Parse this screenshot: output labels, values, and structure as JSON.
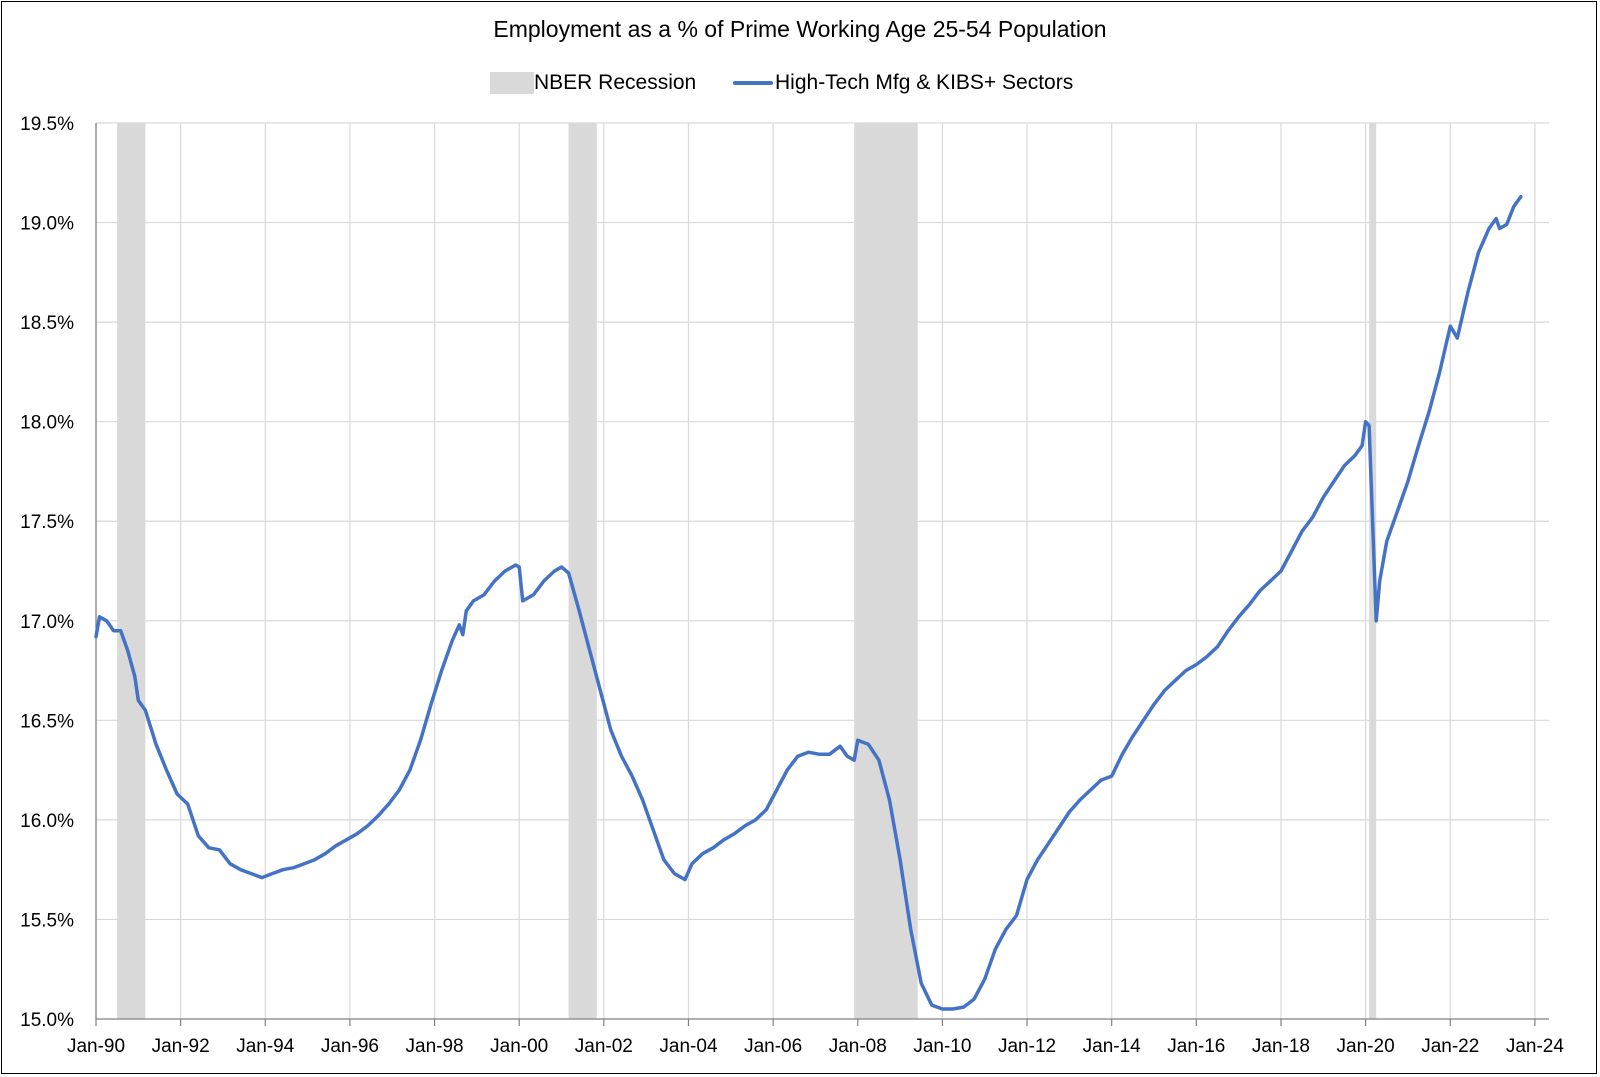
{
  "chart_data": {
    "type": "line",
    "title": "Employment as a % of Prime Working Age 25-54 Population",
    "xlabel": "",
    "ylabel": "",
    "ylim": [
      15.0,
      19.5
    ],
    "y_ticks": [
      "15.0%",
      "15.5%",
      "16.0%",
      "16.5%",
      "17.0%",
      "17.5%",
      "18.0%",
      "18.5%",
      "19.0%",
      "19.5%"
    ],
    "x_ticks": [
      "Jan-90",
      "Jan-92",
      "Jan-94",
      "Jan-96",
      "Jan-98",
      "Jan-00",
      "Jan-02",
      "Jan-04",
      "Jan-06",
      "Jan-08",
      "Jan-10",
      "Jan-12",
      "Jan-14",
      "Jan-16",
      "Jan-18",
      "Jan-20",
      "Jan-22",
      "Jan-24"
    ],
    "xlim": [
      "1990-01",
      "2024-05"
    ],
    "grid": true,
    "legend_position": "top-center",
    "legend": {
      "recession_label": "NBER Recession",
      "series_label": "High-Tech Mfg & KIBS+ Sectors"
    },
    "colors": {
      "series": "#4472c4",
      "recession": "#d9d9d9",
      "grid": "#d9d9d9"
    },
    "recessions": [
      {
        "start": "1990-07",
        "end": "1991-03"
      },
      {
        "start": "2001-03",
        "end": "2001-11"
      },
      {
        "start": "2007-12",
        "end": "2009-06"
      },
      {
        "start": "2020-02",
        "end": "2020-04"
      }
    ],
    "series": [
      {
        "name": "High-Tech Mfg & KIBS+ Sectors",
        "points": [
          [
            "1990-01",
            16.92
          ],
          [
            "1990-02",
            17.02
          ],
          [
            "1990-04",
            17.0
          ],
          [
            "1990-06",
            16.95
          ],
          [
            "1990-08",
            16.95
          ],
          [
            "1990-10",
            16.85
          ],
          [
            "1990-12",
            16.72
          ],
          [
            "1991-01",
            16.6
          ],
          [
            "1991-03",
            16.55
          ],
          [
            "1991-06",
            16.38
          ],
          [
            "1991-09",
            16.25
          ],
          [
            "1991-12",
            16.13
          ],
          [
            "1992-03",
            16.08
          ],
          [
            "1992-06",
            15.92
          ],
          [
            "1992-09",
            15.86
          ],
          [
            "1992-12",
            15.85
          ],
          [
            "1993-03",
            15.78
          ],
          [
            "1993-06",
            15.75
          ],
          [
            "1993-09",
            15.73
          ],
          [
            "1993-12",
            15.71
          ],
          [
            "1994-03",
            15.73
          ],
          [
            "1994-06",
            15.75
          ],
          [
            "1994-09",
            15.76
          ],
          [
            "1994-12",
            15.78
          ],
          [
            "1995-03",
            15.8
          ],
          [
            "1995-06",
            15.83
          ],
          [
            "1995-09",
            15.87
          ],
          [
            "1995-12",
            15.9
          ],
          [
            "1996-03",
            15.93
          ],
          [
            "1996-06",
            15.97
          ],
          [
            "1996-09",
            16.02
          ],
          [
            "1996-12",
            16.08
          ],
          [
            "1997-03",
            16.15
          ],
          [
            "1997-06",
            16.25
          ],
          [
            "1997-09",
            16.4
          ],
          [
            "1997-12",
            16.58
          ],
          [
            "1998-03",
            16.75
          ],
          [
            "1998-06",
            16.9
          ],
          [
            "1998-08",
            16.98
          ],
          [
            "1998-09",
            16.93
          ],
          [
            "1998-10",
            17.05
          ],
          [
            "1998-12",
            17.1
          ],
          [
            "1999-03",
            17.13
          ],
          [
            "1999-06",
            17.2
          ],
          [
            "1999-09",
            17.25
          ],
          [
            "1999-12",
            17.28
          ],
          [
            "2000-01",
            17.27
          ],
          [
            "2000-02",
            17.1
          ],
          [
            "2000-05",
            17.13
          ],
          [
            "2000-08",
            17.2
          ],
          [
            "2000-11",
            17.25
          ],
          [
            "2001-01",
            17.27
          ],
          [
            "2001-03",
            17.24
          ],
          [
            "2001-06",
            17.05
          ],
          [
            "2001-09",
            16.85
          ],
          [
            "2001-12",
            16.65
          ],
          [
            "2002-03",
            16.45
          ],
          [
            "2002-06",
            16.32
          ],
          [
            "2002-09",
            16.22
          ],
          [
            "2002-12",
            16.1
          ],
          [
            "2003-03",
            15.95
          ],
          [
            "2003-06",
            15.8
          ],
          [
            "2003-09",
            15.73
          ],
          [
            "2003-12",
            15.7
          ],
          [
            "2004-02",
            15.78
          ],
          [
            "2004-05",
            15.83
          ],
          [
            "2004-08",
            15.86
          ],
          [
            "2004-11",
            15.9
          ],
          [
            "2005-02",
            15.93
          ],
          [
            "2005-05",
            15.97
          ],
          [
            "2005-08",
            16.0
          ],
          [
            "2005-11",
            16.05
          ],
          [
            "2006-02",
            16.15
          ],
          [
            "2006-05",
            16.25
          ],
          [
            "2006-08",
            16.32
          ],
          [
            "2006-11",
            16.34
          ],
          [
            "2007-02",
            16.33
          ],
          [
            "2007-05",
            16.33
          ],
          [
            "2007-08",
            16.37
          ],
          [
            "2007-10",
            16.32
          ],
          [
            "2007-12",
            16.3
          ],
          [
            "2008-01",
            16.4
          ],
          [
            "2008-04",
            16.38
          ],
          [
            "2008-07",
            16.3
          ],
          [
            "2008-10",
            16.1
          ],
          [
            "2009-01",
            15.8
          ],
          [
            "2009-04",
            15.45
          ],
          [
            "2009-07",
            15.18
          ],
          [
            "2009-10",
            15.07
          ],
          [
            "2010-01",
            15.05
          ],
          [
            "2010-04",
            15.05
          ],
          [
            "2010-07",
            15.06
          ],
          [
            "2010-10",
            15.1
          ],
          [
            "2011-01",
            15.2
          ],
          [
            "2011-04",
            15.35
          ],
          [
            "2011-07",
            15.45
          ],
          [
            "2011-10",
            15.52
          ],
          [
            "2012-01",
            15.7
          ],
          [
            "2012-04",
            15.8
          ],
          [
            "2012-07",
            15.88
          ],
          [
            "2012-10",
            15.96
          ],
          [
            "2013-01",
            16.04
          ],
          [
            "2013-04",
            16.1
          ],
          [
            "2013-07",
            16.15
          ],
          [
            "2013-10",
            16.2
          ],
          [
            "2014-01",
            16.22
          ],
          [
            "2014-04",
            16.33
          ],
          [
            "2014-07",
            16.42
          ],
          [
            "2014-10",
            16.5
          ],
          [
            "2015-01",
            16.58
          ],
          [
            "2015-04",
            16.65
          ],
          [
            "2015-07",
            16.7
          ],
          [
            "2015-10",
            16.75
          ],
          [
            "2016-01",
            16.78
          ],
          [
            "2016-04",
            16.82
          ],
          [
            "2016-07",
            16.87
          ],
          [
            "2016-10",
            16.95
          ],
          [
            "2017-01",
            17.02
          ],
          [
            "2017-04",
            17.08
          ],
          [
            "2017-07",
            17.15
          ],
          [
            "2017-10",
            17.2
          ],
          [
            "2018-01",
            17.25
          ],
          [
            "2018-04",
            17.35
          ],
          [
            "2018-07",
            17.45
          ],
          [
            "2018-10",
            17.52
          ],
          [
            "2019-01",
            17.62
          ],
          [
            "2019-04",
            17.7
          ],
          [
            "2019-07",
            17.78
          ],
          [
            "2019-10",
            17.83
          ],
          [
            "2019-12",
            17.88
          ],
          [
            "2020-01",
            18.0
          ],
          [
            "2020-02",
            17.98
          ],
          [
            "2020-04",
            17.0
          ],
          [
            "2020-05",
            17.2
          ],
          [
            "2020-07",
            17.4
          ],
          [
            "2020-10",
            17.55
          ],
          [
            "2021-01",
            17.7
          ],
          [
            "2021-04",
            17.88
          ],
          [
            "2021-07",
            18.05
          ],
          [
            "2021-10",
            18.25
          ],
          [
            "2022-01",
            18.48
          ],
          [
            "2022-03",
            18.42
          ],
          [
            "2022-06",
            18.65
          ],
          [
            "2022-09",
            18.85
          ],
          [
            "2022-12",
            18.97
          ],
          [
            "2023-02",
            19.02
          ],
          [
            "2023-03",
            18.97
          ],
          [
            "2023-05",
            18.99
          ],
          [
            "2023-07",
            19.08
          ],
          [
            "2023-09",
            19.13
          ]
        ]
      }
    ]
  }
}
